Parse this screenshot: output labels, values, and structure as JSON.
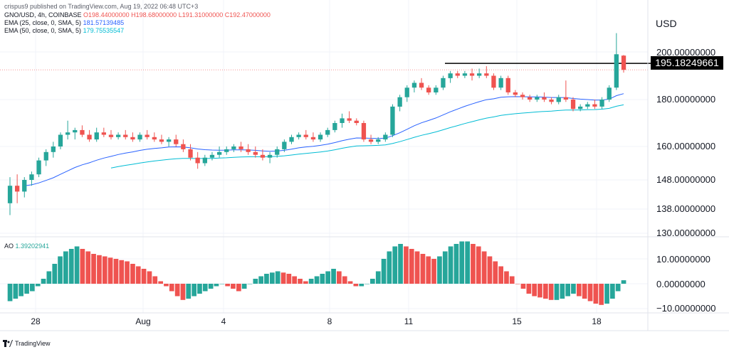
{
  "top_note": "crispus9 published on TradingView.com, Aug 19, 2022 06:48 UTC+3",
  "legend": {
    "symbol": "GNO/USD, 4h, COINBASE",
    "ohlc": {
      "o": "O198.44000000",
      "h": "H198.68000000",
      "l": "L191.31000000",
      "c": "C192.47000000"
    },
    "ema25_label": "EMA (25, close, 0, SMA, 5)",
    "ema25_value": "181.57139485",
    "ema50_label": "EMA (50, close, 0, SMA, 5)",
    "ema50_value": "179.75535547"
  },
  "currency": "USD",
  "price_axis": [
    "200.00000000",
    "180.00000000",
    "160.00000000",
    "148.00000000",
    "138.00000000",
    "130.00000000"
  ],
  "price_tag": "195.18249661",
  "ao": {
    "label": "AO",
    "value": "1.39202941",
    "axis": [
      "10.00000000",
      "0.00000000",
      "−10.00000000"
    ]
  },
  "time_axis": [
    "28",
    "Aug",
    "4",
    "8",
    "11",
    "15",
    "18"
  ],
  "footer": "TradingView",
  "colors": {
    "up": "#26a69a",
    "down": "#ef5350",
    "ema25": "#2962ff",
    "ema50": "#00bcd4",
    "line": "#000000"
  },
  "chart_data": {
    "type": "candlestick",
    "title": "GNO/USD, 4h, COINBASE",
    "ylim": [
      130,
      210
    ],
    "horizontal_line": 195.18,
    "candles": [
      {
        "o": 140,
        "h": 149,
        "l": 136,
        "c": 146
      },
      {
        "o": 146,
        "h": 150,
        "l": 140,
        "c": 144
      },
      {
        "o": 144,
        "h": 149,
        "l": 142,
        "c": 148
      },
      {
        "o": 148,
        "h": 151,
        "l": 146,
        "c": 150
      },
      {
        "o": 150,
        "h": 156,
        "l": 149,
        "c": 155
      },
      {
        "o": 155,
        "h": 159,
        "l": 153,
        "c": 158
      },
      {
        "o": 158,
        "h": 162,
        "l": 156,
        "c": 160
      },
      {
        "o": 160,
        "h": 166,
        "l": 159,
        "c": 165
      },
      {
        "o": 165,
        "h": 171,
        "l": 163,
        "c": 166
      },
      {
        "o": 166,
        "h": 168,
        "l": 163,
        "c": 167
      },
      {
        "o": 167,
        "h": 169,
        "l": 164,
        "c": 165
      },
      {
        "o": 165,
        "h": 167,
        "l": 162,
        "c": 163
      },
      {
        "o": 163,
        "h": 168,
        "l": 162,
        "c": 166
      },
      {
        "o": 166,
        "h": 168,
        "l": 164,
        "c": 165
      },
      {
        "o": 165,
        "h": 167,
        "l": 163,
        "c": 164
      },
      {
        "o": 164,
        "h": 166,
        "l": 163,
        "c": 165
      },
      {
        "o": 165,
        "h": 167,
        "l": 163,
        "c": 164
      },
      {
        "o": 164,
        "h": 166,
        "l": 162,
        "c": 163
      },
      {
        "o": 163,
        "h": 166,
        "l": 162,
        "c": 165
      },
      {
        "o": 165,
        "h": 167,
        "l": 163,
        "c": 164
      },
      {
        "o": 164,
        "h": 166,
        "l": 162,
        "c": 163
      },
      {
        "o": 163,
        "h": 165,
        "l": 161,
        "c": 162
      },
      {
        "o": 162,
        "h": 164,
        "l": 160,
        "c": 163
      },
      {
        "o": 163,
        "h": 165,
        "l": 160,
        "c": 161
      },
      {
        "o": 161,
        "h": 163,
        "l": 158,
        "c": 159
      },
      {
        "o": 159,
        "h": 161,
        "l": 155,
        "c": 156
      },
      {
        "o": 156,
        "h": 158,
        "l": 152,
        "c": 154
      },
      {
        "o": 154,
        "h": 157,
        "l": 153,
        "c": 156
      },
      {
        "o": 156,
        "h": 158,
        "l": 155,
        "c": 157
      },
      {
        "o": 157,
        "h": 160,
        "l": 156,
        "c": 158
      },
      {
        "o": 158,
        "h": 160,
        "l": 157,
        "c": 159
      },
      {
        "o": 159,
        "h": 161,
        "l": 158,
        "c": 160
      },
      {
        "o": 160,
        "h": 162,
        "l": 158,
        "c": 159
      },
      {
        "o": 159,
        "h": 161,
        "l": 157,
        "c": 158
      },
      {
        "o": 158,
        "h": 160,
        "l": 156,
        "c": 157
      },
      {
        "o": 157,
        "h": 159,
        "l": 155,
        "c": 156
      },
      {
        "o": 156,
        "h": 158,
        "l": 154,
        "c": 157
      },
      {
        "o": 157,
        "h": 160,
        "l": 156,
        "c": 159
      },
      {
        "o": 159,
        "h": 163,
        "l": 158,
        "c": 162
      },
      {
        "o": 162,
        "h": 165,
        "l": 161,
        "c": 164
      },
      {
        "o": 164,
        "h": 166,
        "l": 163,
        "c": 165
      },
      {
        "o": 165,
        "h": 167,
        "l": 163,
        "c": 164
      },
      {
        "o": 164,
        "h": 166,
        "l": 162,
        "c": 163
      },
      {
        "o": 163,
        "h": 166,
        "l": 162,
        "c": 165
      },
      {
        "o": 165,
        "h": 168,
        "l": 164,
        "c": 167
      },
      {
        "o": 167,
        "h": 171,
        "l": 166,
        "c": 170
      },
      {
        "o": 170,
        "h": 174,
        "l": 168,
        "c": 172
      },
      {
        "o": 172,
        "h": 175,
        "l": 170,
        "c": 171
      },
      {
        "o": 171,
        "h": 172,
        "l": 169,
        "c": 170
      },
      {
        "o": 170,
        "h": 171,
        "l": 162,
        "c": 163
      },
      {
        "o": 163,
        "h": 165,
        "l": 161,
        "c": 162
      },
      {
        "o": 162,
        "h": 164,
        "l": 161,
        "c": 163
      },
      {
        "o": 163,
        "h": 166,
        "l": 162,
        "c": 165
      },
      {
        "o": 165,
        "h": 178,
        "l": 164,
        "c": 177
      },
      {
        "o": 177,
        "h": 182,
        "l": 175,
        "c": 181
      },
      {
        "o": 181,
        "h": 186,
        "l": 179,
        "c": 185
      },
      {
        "o": 185,
        "h": 188,
        "l": 183,
        "c": 187
      },
      {
        "o": 187,
        "h": 189,
        "l": 184,
        "c": 185
      },
      {
        "o": 185,
        "h": 186,
        "l": 182,
        "c": 183
      },
      {
        "o": 183,
        "h": 186,
        "l": 182,
        "c": 185
      },
      {
        "o": 185,
        "h": 190,
        "l": 184,
        "c": 189
      },
      {
        "o": 189,
        "h": 192,
        "l": 187,
        "c": 191
      },
      {
        "o": 191,
        "h": 192,
        "l": 189,
        "c": 190
      },
      {
        "o": 190,
        "h": 192,
        "l": 189,
        "c": 191
      },
      {
        "o": 191,
        "h": 193,
        "l": 188,
        "c": 190
      },
      {
        "o": 190,
        "h": 193,
        "l": 189,
        "c": 191
      },
      {
        "o": 191,
        "h": 194,
        "l": 189,
        "c": 190
      },
      {
        "o": 190,
        "h": 191,
        "l": 184,
        "c": 185
      },
      {
        "o": 185,
        "h": 190,
        "l": 184,
        "c": 189
      },
      {
        "o": 189,
        "h": 190,
        "l": 182,
        "c": 183
      },
      {
        "o": 183,
        "h": 184,
        "l": 181,
        "c": 182
      },
      {
        "o": 182,
        "h": 183,
        "l": 180,
        "c": 181
      },
      {
        "o": 181,
        "h": 182,
        "l": 179,
        "c": 180
      },
      {
        "o": 180,
        "h": 182,
        "l": 179,
        "c": 181
      },
      {
        "o": 181,
        "h": 183,
        "l": 179,
        "c": 180
      },
      {
        "o": 180,
        "h": 181,
        "l": 178,
        "c": 179
      },
      {
        "o": 179,
        "h": 182,
        "l": 178,
        "c": 181
      },
      {
        "o": 181,
        "h": 188,
        "l": 179,
        "c": 180
      },
      {
        "o": 180,
        "h": 181,
        "l": 175,
        "c": 176
      },
      {
        "o": 176,
        "h": 178,
        "l": 175,
        "c": 177
      },
      {
        "o": 177,
        "h": 179,
        "l": 176,
        "c": 178
      },
      {
        "o": 178,
        "h": 180,
        "l": 176,
        "c": 177
      },
      {
        "o": 177,
        "h": 181,
        "l": 176,
        "c": 180
      },
      {
        "o": 180,
        "h": 186,
        "l": 179,
        "c": 185
      },
      {
        "o": 185,
        "h": 208,
        "l": 184,
        "c": 199
      },
      {
        "o": 198.44,
        "h": 198.68,
        "l": 191.31,
        "c": 192.47
      }
    ],
    "ao_values": [
      -7,
      -6,
      -5,
      -4,
      -3,
      -1,
      2,
      5,
      8,
      11,
      13,
      14,
      15,
      14,
      13,
      12,
      11.5,
      11,
      10.5,
      10,
      9.5,
      9,
      8,
      7,
      6,
      5,
      3,
      1,
      -1,
      -3,
      -5,
      -6.5,
      -6,
      -5,
      -4,
      -3,
      -2,
      -1,
      0,
      -1,
      -2,
      -3,
      -2,
      0,
      2,
      3,
      4,
      4.5,
      5,
      4.5,
      4,
      3,
      2,
      1,
      2,
      3,
      4,
      5,
      6,
      5,
      3,
      1,
      -1,
      -1,
      0,
      2,
      5,
      10,
      13,
      15,
      16,
      15,
      14,
      13,
      12,
      11,
      10,
      11,
      13,
      15,
      16,
      17,
      17,
      16,
      15,
      13,
      11,
      9,
      7,
      5,
      3,
      0,
      -2,
      -4,
      -5,
      -5.5,
      -6,
      -6.5,
      -6.5,
      -6,
      -5,
      -4,
      -5,
      -6,
      -7,
      -8,
      -8.5,
      -8,
      -6,
      -3,
      1.4
    ]
  }
}
